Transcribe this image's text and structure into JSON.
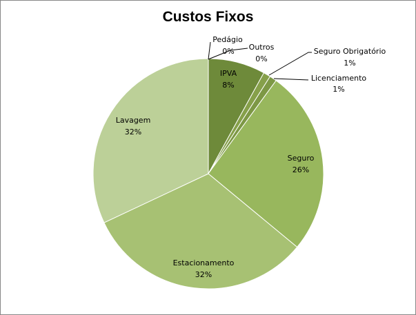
{
  "chart_data": {
    "type": "pie",
    "title": "Custos Fixos",
    "slices": [
      {
        "label": "IPVA",
        "value": 8,
        "display": "8%",
        "color": "#6e8a3a"
      },
      {
        "label": "Seguro Obrigatório",
        "value": 1,
        "display": "1%",
        "color": "#86a04a"
      },
      {
        "label": "Licenciamento",
        "value": 1,
        "display": "1%",
        "color": "#7d9845"
      },
      {
        "label": "Seguro",
        "value": 26,
        "display": "26%",
        "color": "#98b75d"
      },
      {
        "label": "Estacionamento",
        "value": 32,
        "display": "32%",
        "color": "#a7c173"
      },
      {
        "label": "Lavagem",
        "value": 32,
        "display": "32%",
        "color": "#bcd098"
      },
      {
        "label": "Pedágio",
        "value": 0,
        "display": "0%",
        "color": "#5a7a2a"
      },
      {
        "label": "Outros",
        "value": 0,
        "display": "0%",
        "color": "#63812f"
      }
    ],
    "legend": "none",
    "label_placement": "data labels on slices, leader lines for small slices"
  }
}
